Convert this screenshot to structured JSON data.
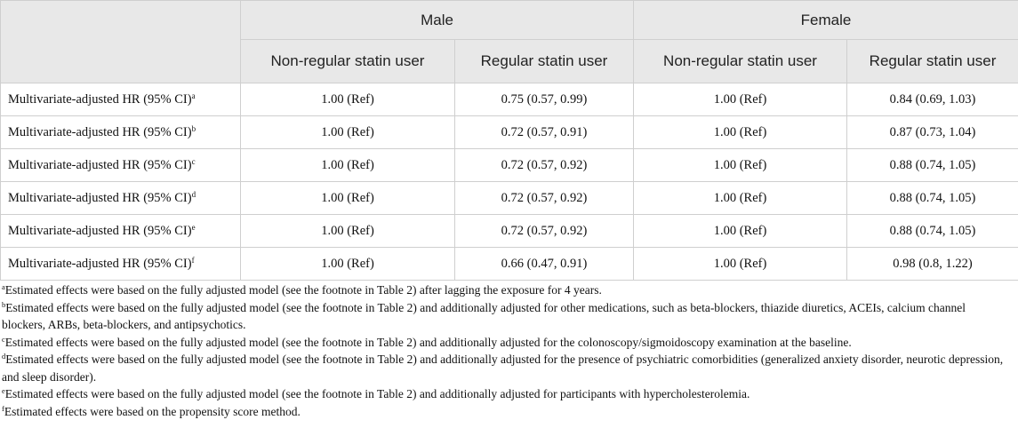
{
  "table": {
    "groups": [
      "Male",
      "Female"
    ],
    "subheaders": [
      "Non-regular statin user",
      "Regular statin user",
      "Non-regular statin user",
      "Regular statin user"
    ],
    "rows": [
      {
        "label": "Multivariate-adjusted HR (95% CI)",
        "sup": "a",
        "values": [
          "1.00 (Ref)",
          "0.75 (0.57, 0.99)",
          "1.00 (Ref)",
          "0.84 (0.69, 1.03)"
        ]
      },
      {
        "label": "Multivariate-adjusted HR (95% CI)",
        "sup": "b",
        "values": [
          "1.00 (Ref)",
          "0.72 (0.57, 0.91)",
          "1.00 (Ref)",
          "0.87 (0.73, 1.04)"
        ]
      },
      {
        "label": "Multivariate-adjusted HR (95% CI)",
        "sup": "c",
        "values": [
          "1.00 (Ref)",
          "0.72 (0.57, 0.92)",
          "1.00 (Ref)",
          "0.88 (0.74, 1.05)"
        ]
      },
      {
        "label": "Multivariate-adjusted HR (95% CI)",
        "sup": "d",
        "values": [
          "1.00 (Ref)",
          "0.72 (0.57, 0.92)",
          "1.00 (Ref)",
          "0.88 (0.74, 1.05)"
        ]
      },
      {
        "label": "Multivariate-adjusted HR (95% CI)",
        "sup": "e",
        "values": [
          "1.00 (Ref)",
          "0.72 (0.57, 0.92)",
          "1.00 (Ref)",
          "0.88 (0.74, 1.05)"
        ]
      },
      {
        "label": "Multivariate-adjusted HR (95% CI)",
        "sup": "f",
        "values": [
          "1.00 (Ref)",
          "0.66 (0.47, 0.91)",
          "1.00 (Ref)",
          "0.98 (0.8, 1.22)"
        ]
      }
    ]
  },
  "footnotes": [
    {
      "mark": "a",
      "text": "Estimated effects were based on the fully adjusted model (see the footnote in Table 2) after lagging the exposure for 4 years."
    },
    {
      "mark": "b",
      "text": "Estimated effects were based on the fully adjusted model (see the footnote in Table 2) and additionally adjusted for other medications, such as beta-blockers, thiazide diuretics, ACEIs, calcium channel blockers, ARBs, beta-blockers, and antipsychotics."
    },
    {
      "mark": "c",
      "text": "Estimated effects were based on the fully adjusted model (see the footnote in Table 2) and additionally adjusted for the colonoscopy/sigmoidoscopy examination at the baseline."
    },
    {
      "mark": "d",
      "text": "Estimated effects were based on the fully adjusted model (see the footnote in Table 2) and additionally adjusted for the presence of psychiatric comorbidities (generalized anxiety disorder, neurotic depression, and sleep disorder)."
    },
    {
      "mark": "e",
      "text": "Estimated effects were based on the fully adjusted model (see the footnote in Table 2) and additionally adjusted for participants with hypercholesterolemia."
    },
    {
      "mark": "f",
      "text": "Estimated effects were based on the propensity score method."
    }
  ]
}
